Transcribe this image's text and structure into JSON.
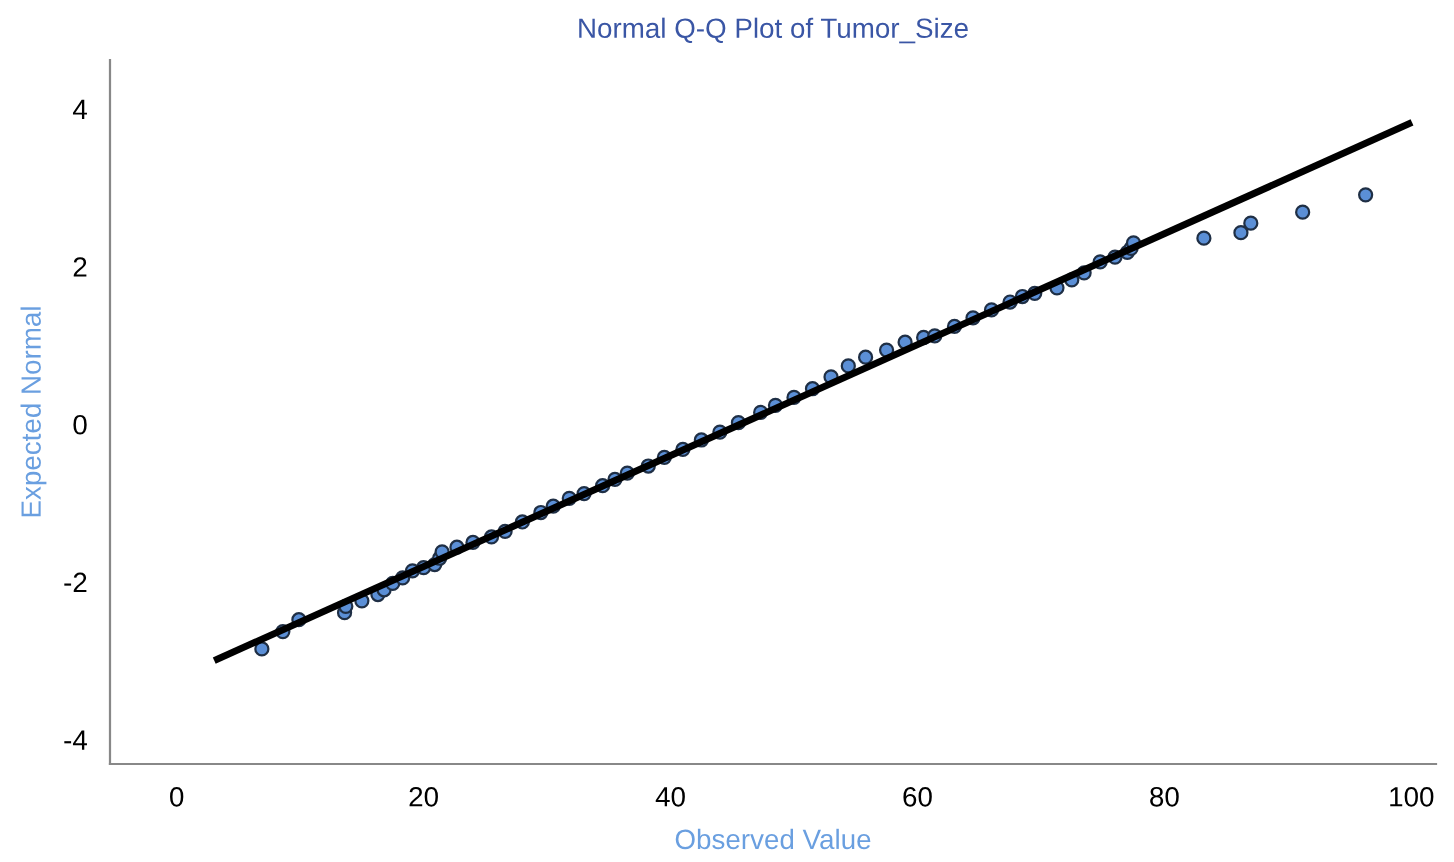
{
  "chart_data": {
    "type": "scatter",
    "title": "Normal Q-Q Plot of Tumor_Size",
    "xlabel": "Observed Value",
    "ylabel": "Expected Normal",
    "xlim": [
      -5.4,
      102
    ],
    "ylim": [
      -4.31,
      4.62
    ],
    "xticks": [
      0,
      20,
      40,
      60,
      80,
      100
    ],
    "yticks": [
      -4,
      -2,
      0,
      2,
      4
    ],
    "grid": false,
    "legend": false,
    "series": [
      {
        "type": "scatter",
        "marker": "circle",
        "color": "#5b8fd6",
        "x": [
          6.9,
          8.6,
          9.9,
          13.6,
          13.7,
          15.0,
          16.3,
          16.8,
          17.5,
          18.3,
          19.1,
          20.0,
          20.9,
          21.3,
          21.5,
          22.7,
          24.0,
          25.5,
          26.6,
          28.0,
          29.5,
          30.5,
          31.8,
          33.0,
          34.5,
          35.5,
          36.5,
          38.2,
          39.5,
          41.0,
          42.5,
          44.0,
          45.5,
          47.3,
          48.5,
          50.0,
          51.5,
          53.0,
          54.4,
          55.8,
          57.5,
          59.0,
          60.5,
          61.4,
          63.0,
          64.5,
          66.0,
          67.5,
          68.5,
          69.5,
          71.3,
          72.5,
          73.5,
          74.8,
          76.0,
          77.0,
          77.3,
          77.5,
          83.2,
          86.2,
          87.0,
          91.2,
          96.3
        ],
        "values": [
          -2.85,
          -2.63,
          -2.48,
          -2.39,
          -2.31,
          -2.24,
          -2.16,
          -2.1,
          -2.02,
          -1.95,
          -1.86,
          -1.82,
          -1.78,
          -1.7,
          -1.62,
          -1.56,
          -1.5,
          -1.43,
          -1.36,
          -1.24,
          -1.12,
          -1.04,
          -0.94,
          -0.88,
          -0.78,
          -0.7,
          -0.62,
          -0.53,
          -0.42,
          -0.32,
          -0.2,
          -0.1,
          0.02,
          0.15,
          0.24,
          0.34,
          0.45,
          0.6,
          0.74,
          0.85,
          0.94,
          1.04,
          1.1,
          1.12,
          1.24,
          1.35,
          1.45,
          1.55,
          1.62,
          1.66,
          1.73,
          1.83,
          1.92,
          2.06,
          2.12,
          2.18,
          2.23,
          2.3,
          2.36,
          2.43,
          2.55,
          2.69,
          2.91
        ]
      },
      {
        "type": "line",
        "color": "#000000",
        "line_style": "solid",
        "x": [
          3.3,
          99.8
        ],
        "values": [
          -2.98,
          3.81
        ]
      }
    ]
  }
}
